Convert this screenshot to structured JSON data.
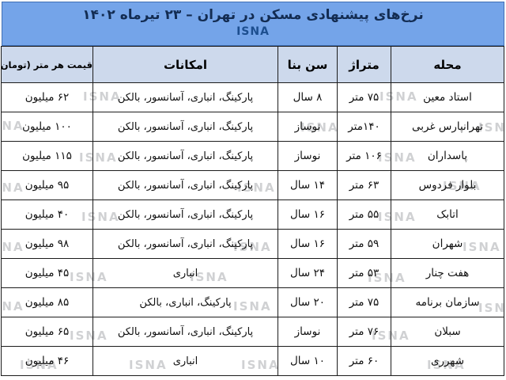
{
  "header": {
    "title": "نرخ‌های پیشنهادی مسکن در تهران – ۲۳ تیرماه ۱۴۰۲",
    "agency": "ISNA"
  },
  "watermark": {
    "text": "ISNA"
  },
  "colors": {
    "title_bg": "#74a4e9",
    "title_text": "#132c52",
    "agency_text": "#1c4e8f",
    "header_row_bg": "#cdd9ec",
    "border": "#1c1c1c",
    "watermark_gray": "#96999e"
  },
  "table": {
    "columns": [
      {
        "key": "neighborhood",
        "label": "محله"
      },
      {
        "key": "area",
        "label": "متراژ"
      },
      {
        "key": "age",
        "label": "سن بنا"
      },
      {
        "key": "amenities",
        "label": "امکانات"
      },
      {
        "key": "price",
        "label": "قیمت هر متر (تومان)"
      }
    ],
    "rows": [
      {
        "neighborhood": "استاد معین",
        "area": "۷۵ متر",
        "age": "۸ سال",
        "amenities": "پارکینگ، انباری، آسانسور، بالکن",
        "price": "۶۲ میلیون"
      },
      {
        "neighborhood": "تهرانپارس غربی",
        "area": "۱۴۰متر",
        "age": "نوساز",
        "amenities": "پارکینگ، انباری، آسانسور، بالکن",
        "price": "۱۰۰ میلیون"
      },
      {
        "neighborhood": "پاسداران",
        "area": "۱۰۶ متر",
        "age": "نوساز",
        "amenities": "پارکینگ، انباری، آسانسور، بالکن",
        "price": "۱۱۵ میلیون"
      },
      {
        "neighborhood": "بلوار فردوس",
        "area": "۶۳ متر",
        "age": "۱۴ سال",
        "amenities": "پارکینگ، انباری، آسانسور، بالکن",
        "price": "۹۵ میلیون"
      },
      {
        "neighborhood": "اتابک",
        "area": "۵۵ متر",
        "age": "۱۶ سال",
        "amenities": "پارکینگ، انباری، آسانسور، بالکن",
        "price": "۴۰ میلیون"
      },
      {
        "neighborhood": "شهران",
        "area": "۵۹ متر",
        "age": "۱۶ سال",
        "amenities": "پارکینگ، انباری، آسانسور، بالکن",
        "price": "۹۸ میلیون"
      },
      {
        "neighborhood": "هفت چنار",
        "area": "۵۳ متر",
        "age": "۲۴ سال",
        "amenities": "انباری",
        "price": "۴۵ میلیون"
      },
      {
        "neighborhood": "سازمان برنامه",
        "area": "۷۵ متر",
        "age": "۲۰ سال",
        "amenities": "پارکینگ، انباری، بالکن",
        "price": "۸۵ میلیون"
      },
      {
        "neighborhood": "سبلان",
        "area": "۷۶ متر",
        "age": "نوساز",
        "amenities": "پارکینگ، انباری، آسانسور، بالکن",
        "price": "۶۵ میلیون"
      },
      {
        "neighborhood": "شهرری",
        "area": "۶۰ متر",
        "age": "۱۰ سال",
        "amenities": "انباری",
        "price": "۴۶ میلیون"
      }
    ]
  }
}
